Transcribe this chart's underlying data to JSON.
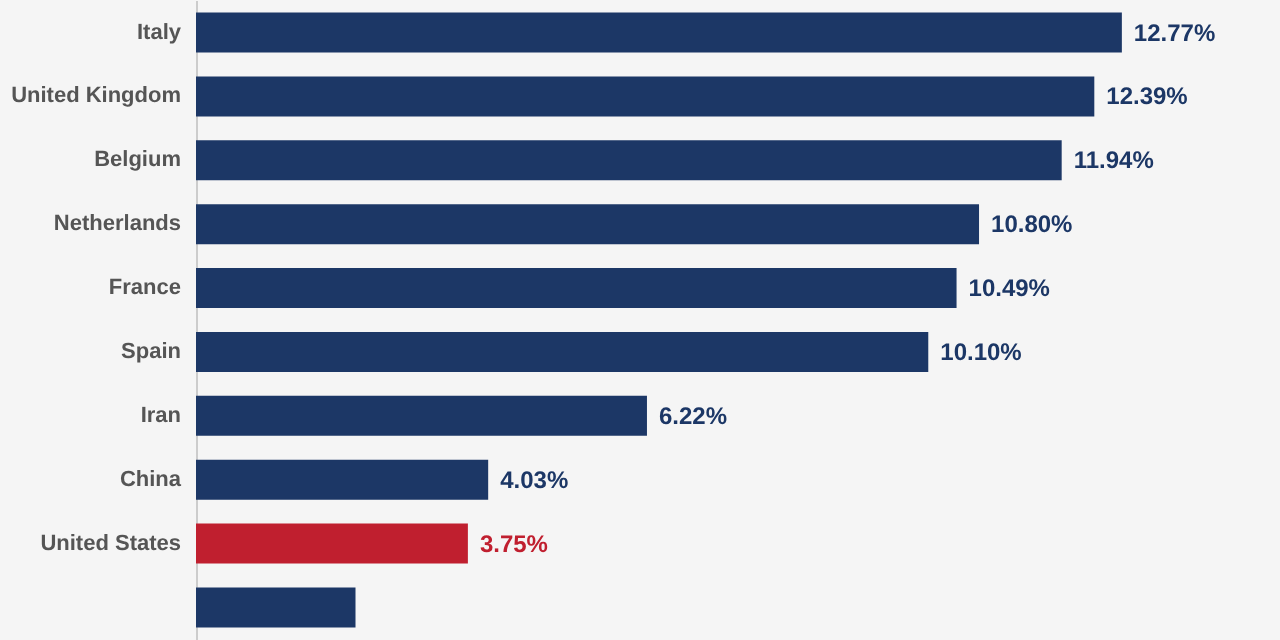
{
  "chart_data": {
    "type": "bar",
    "orientation": "horizontal",
    "categories": [
      "Italy",
      "United Kingdom",
      "Belgium",
      "Netherlands",
      "France",
      "Spain",
      "Iran",
      "China",
      "United States",
      null
    ],
    "values": [
      12.77,
      12.39,
      11.94,
      10.8,
      10.49,
      10.1,
      6.22,
      4.03,
      3.75,
      2.2
    ],
    "colors": [
      "#1c3766",
      "#1c3766",
      "#1c3766",
      "#1c3766",
      "#1c3766",
      "#1c3766",
      "#1c3766",
      "#1c3766",
      "#c01f2f",
      "#1c3766"
    ],
    "value_labels": [
      "12.77%",
      "12.39%",
      "11.94%",
      "10.80%",
      "10.49%",
      "10.10%",
      "6.22%",
      "4.03%",
      "3.75%",
      null
    ],
    "grid": false
  }
}
